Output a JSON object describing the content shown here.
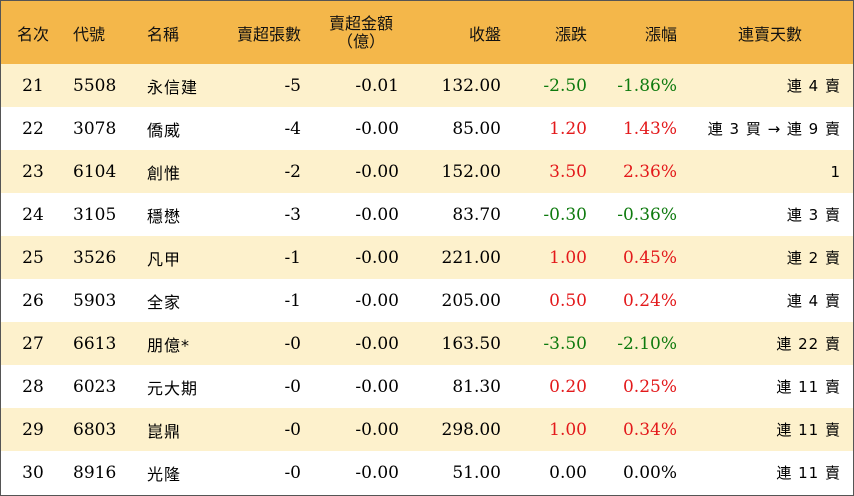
{
  "headers": {
    "rank": "名次",
    "code": "代號",
    "name": "名稱",
    "net_sell_lots": "賣超張數",
    "net_sell_amount_line1": "賣超金額",
    "net_sell_amount_line2": "（億）",
    "close": "收盤",
    "change": "漲跌",
    "pct": "漲幅",
    "streak": "連賣天數"
  },
  "colors": {
    "header_bg": "#f4b74a",
    "odd_row_bg": "#fdf1cc",
    "even_row_bg": "#ffffff",
    "up": "#e3191b",
    "down": "#0e7a0e"
  },
  "rows": [
    {
      "rank": "21",
      "code": "5508",
      "name": "永信建",
      "lots": "-5",
      "amount": "-0.01",
      "close": "132.00",
      "change": "-2.50",
      "pct": "-1.86%",
      "dir": "neg",
      "streak": "連 4 賣"
    },
    {
      "rank": "22",
      "code": "3078",
      "name": "僑威",
      "lots": "-4",
      "amount": "-0.00",
      "close": "85.00",
      "change": "1.20",
      "pct": "1.43%",
      "dir": "pos",
      "streak": "連 3 買 → 連 9 賣"
    },
    {
      "rank": "23",
      "code": "6104",
      "name": "創惟",
      "lots": "-2",
      "amount": "-0.00",
      "close": "152.00",
      "change": "3.50",
      "pct": "2.36%",
      "dir": "pos",
      "streak": "1"
    },
    {
      "rank": "24",
      "code": "3105",
      "name": "穩懋",
      "lots": "-3",
      "amount": "-0.00",
      "close": "83.70",
      "change": "-0.30",
      "pct": "-0.36%",
      "dir": "neg",
      "streak": "連 3 賣"
    },
    {
      "rank": "25",
      "code": "3526",
      "name": "凡甲",
      "lots": "-1",
      "amount": "-0.00",
      "close": "221.00",
      "change": "1.00",
      "pct": "0.45%",
      "dir": "pos",
      "streak": "連 2 賣"
    },
    {
      "rank": "26",
      "code": "5903",
      "name": "全家",
      "lots": "-1",
      "amount": "-0.00",
      "close": "205.00",
      "change": "0.50",
      "pct": "0.24%",
      "dir": "pos",
      "streak": "連 4 賣"
    },
    {
      "rank": "27",
      "code": "6613",
      "name": "朋億*",
      "lots": "-0",
      "amount": "-0.00",
      "close": "163.50",
      "change": "-3.50",
      "pct": "-2.10%",
      "dir": "neg",
      "streak": "連 22 賣"
    },
    {
      "rank": "28",
      "code": "6023",
      "name": "元大期",
      "lots": "-0",
      "amount": "-0.00",
      "close": "81.30",
      "change": "0.20",
      "pct": "0.25%",
      "dir": "pos",
      "streak": "連 11 賣"
    },
    {
      "rank": "29",
      "code": "6803",
      "name": "崑鼎",
      "lots": "-0",
      "amount": "-0.00",
      "close": "298.00",
      "change": "1.00",
      "pct": "0.34%",
      "dir": "pos",
      "streak": "連 11 賣"
    },
    {
      "rank": "30",
      "code": "8916",
      "name": "光隆",
      "lots": "-0",
      "amount": "-0.00",
      "close": "51.00",
      "change": "0.00",
      "pct": "0.00%",
      "dir": "zero",
      "streak": "連 11 賣"
    }
  ]
}
